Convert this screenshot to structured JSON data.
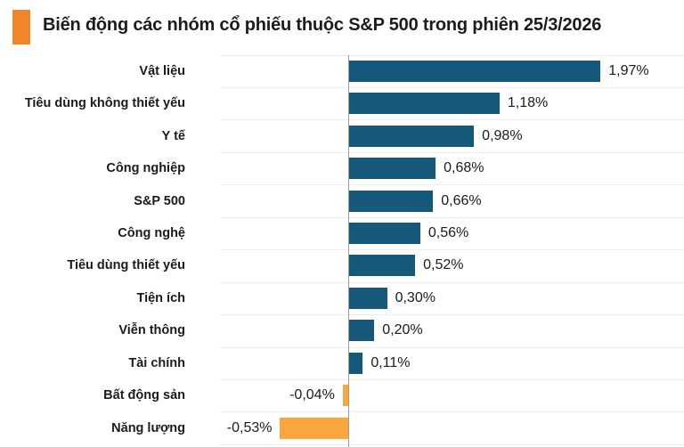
{
  "header": {
    "title": "Biến động các nhóm cổ phiếu thuộc S&P 500 trong phiên 25/3/2026",
    "accent_color": "#f0852b"
  },
  "chart_data": {
    "type": "bar",
    "orientation": "horizontal",
    "title": "Biến động các nhóm cổ phiếu thuộc S&P 500 trong phiên 25/3/2026",
    "categories": [
      "Vật liệu",
      "Tiêu dùng không thiết yếu",
      "Y tế",
      "Công nghiệp",
      "S&P 500",
      "Công nghệ",
      "Tiêu dùng thiết yếu",
      "Tiện ích",
      "Viễn thông",
      "Tài chính",
      "Bất động sản",
      "Năng lượng"
    ],
    "values": [
      1.97,
      1.18,
      0.98,
      0.68,
      0.66,
      0.56,
      0.52,
      0.3,
      0.2,
      0.11,
      -0.04,
      -0.53
    ],
    "value_labels": [
      "1,97%",
      "1,18%",
      "0,98%",
      "0,68%",
      "0,66%",
      "0,56%",
      "0,52%",
      "0,30%",
      "0,20%",
      "0,11%",
      "-0,04%",
      "-0,53%"
    ],
    "unit": "%",
    "xlabel": "",
    "ylabel": "",
    "xlim": [
      -1.0,
      2.63
    ],
    "grid": "horizontal row separators, no tick labels visible",
    "legend": "none",
    "positive_color": "#16587a",
    "negative_color": "#f9a73d",
    "gridline_color": "#ededed",
    "axis_line_color": "#9c9c9c",
    "text_color": "#1b1b1b"
  }
}
